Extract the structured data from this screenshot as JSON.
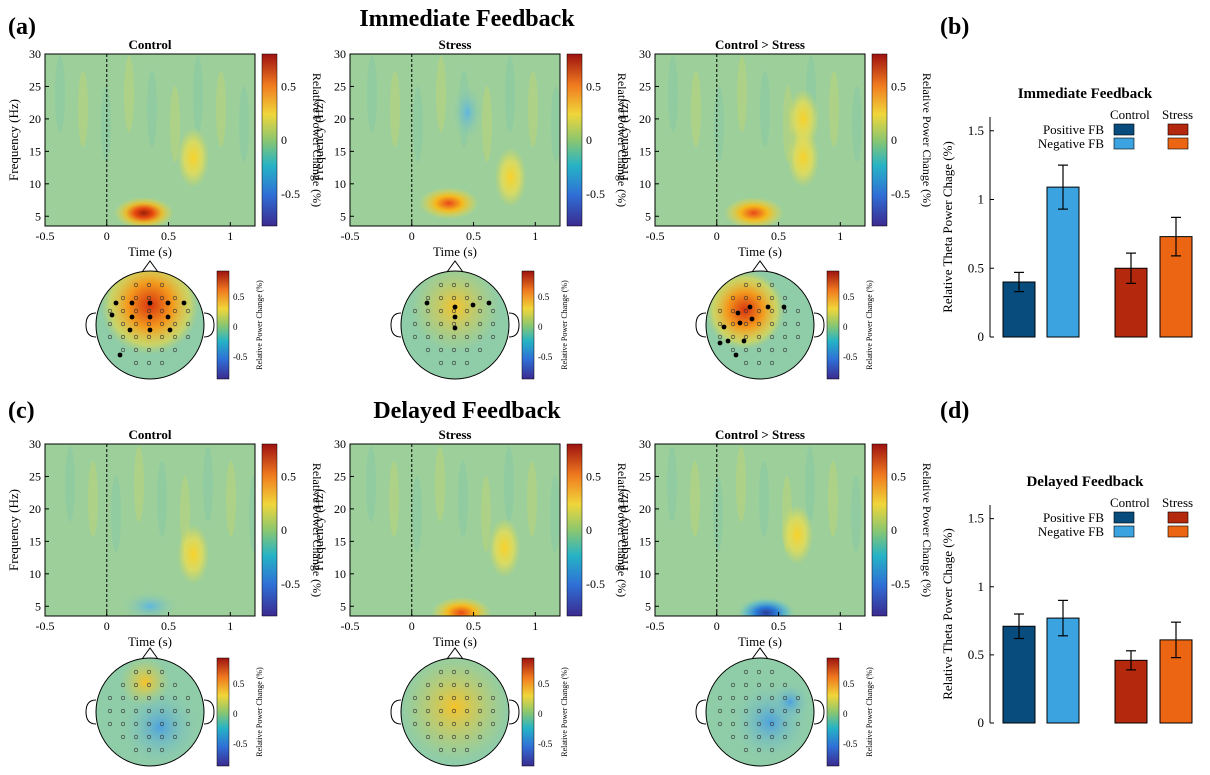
{
  "panels": {
    "a": {
      "letter": "(a)",
      "title": "Immediate Feedback"
    },
    "b": {
      "letter": "(b)"
    },
    "c": {
      "letter": "(c)",
      "title": "Delayed Feedback"
    },
    "d": {
      "letter": "(d)"
    }
  },
  "heatmap_common": {
    "xlabel": "Time (s)",
    "ylabel": "Frequency (Hz)",
    "xticks": [
      "-0.5",
      "0",
      "0.5",
      "1"
    ],
    "yticks": [
      "5",
      "10",
      "15",
      "20",
      "25",
      "30"
    ],
    "colorbar_label": "Relative Power Change (%)",
    "colorbar_ticks": [
      "0.5",
      "0",
      "-0.5"
    ]
  },
  "chart_data": [
    {
      "type": "heatmap",
      "panel": "a",
      "title": "Control",
      "x_range": [
        -0.5,
        1.2
      ],
      "y_range": [
        3.5,
        30
      ],
      "clim": [
        -0.8,
        0.8
      ],
      "features": [
        {
          "time": 0.3,
          "freq": 5.5,
          "value": 0.8
        },
        {
          "time": 0.7,
          "freq": 14,
          "value": 0.3
        }
      ]
    },
    {
      "type": "heatmap",
      "panel": "a",
      "title": "Stress",
      "x_range": [
        -0.5,
        1.2
      ],
      "y_range": [
        3.5,
        30
      ],
      "clim": [
        -0.8,
        0.8
      ],
      "features": [
        {
          "time": 0.3,
          "freq": 7,
          "value": 0.6
        },
        {
          "time": 0.8,
          "freq": 11,
          "value": 0.3
        },
        {
          "time": 0.45,
          "freq": 21,
          "value": -0.2
        }
      ]
    },
    {
      "type": "heatmap",
      "panel": "a",
      "title": "Control > Stress",
      "x_range": [
        -0.5,
        1.2
      ],
      "y_range": [
        3.5,
        30
      ],
      "clim": [
        -0.8,
        0.8
      ],
      "features": [
        {
          "time": 0.3,
          "freq": 5.5,
          "value": 0.6
        },
        {
          "time": 0.7,
          "freq": 20,
          "value": 0.25
        },
        {
          "time": 0.7,
          "freq": 14,
          "value": 0.2
        }
      ]
    },
    {
      "type": "heatmap",
      "panel": "c",
      "title": "Control",
      "x_range": [
        -0.5,
        1.2
      ],
      "y_range": [
        3.5,
        30
      ],
      "clim": [
        -0.8,
        0.8
      ],
      "features": [
        {
          "time": 0.7,
          "freq": 13,
          "value": 0.3
        },
        {
          "time": 0.35,
          "freq": 5,
          "value": -0.1
        }
      ]
    },
    {
      "type": "heatmap",
      "panel": "c",
      "title": "Stress",
      "x_range": [
        -0.5,
        1.2
      ],
      "y_range": [
        3.5,
        30
      ],
      "clim": [
        -0.8,
        0.8
      ],
      "features": [
        {
          "time": 0.4,
          "freq": 4,
          "value": 0.45
        },
        {
          "time": 0.75,
          "freq": 14,
          "value": 0.2
        }
      ]
    },
    {
      "type": "heatmap",
      "panel": "c",
      "title": "Control > Stress",
      "x_range": [
        -0.5,
        1.2
      ],
      "y_range": [
        3.5,
        30
      ],
      "clim": [
        -0.8,
        0.8
      ],
      "features": [
        {
          "time": 0.4,
          "freq": 4,
          "value": -0.7
        },
        {
          "time": 0.65,
          "freq": 16,
          "value": 0.35
        }
      ]
    },
    {
      "type": "bar",
      "panel": "b",
      "title": "Immediate Feedback",
      "ylabel": "Relative Theta Power Chage (%)",
      "ylim": [
        0,
        1.6
      ],
      "yticks": [
        "0",
        "0.5",
        "1",
        "1.5"
      ],
      "legend": {
        "column_headers": [
          "Control",
          "Stress"
        ],
        "rows": [
          "Positive FB",
          "Negative FB"
        ]
      },
      "series": [
        {
          "values": [
            0.4
          ],
          "error": [
            0.07
          ]
        },
        {
          "values": [
            1.09
          ],
          "error": [
            0.16
          ]
        },
        {
          "values": [
            0.5
          ],
          "error": [
            0.11
          ]
        },
        {
          "values": [
            0.73
          ],
          "error": [
            0.14
          ]
        }
      ]
    },
    {
      "type": "bar",
      "panel": "d",
      "title": "Delayed Feedback",
      "ylabel": "Relative Theta Power Chage (%)",
      "ylim": [
        0,
        1.6
      ],
      "yticks": [
        "0",
        "0.5",
        "1",
        "1.5"
      ],
      "legend": {
        "column_headers": [
          "Control",
          "Stress"
        ],
        "rows": [
          "Positive FB",
          "Negative FB"
        ]
      },
      "series": [
        {
          "values": [
            0.71
          ],
          "error": [
            0.09
          ]
        },
        {
          "values": [
            0.77
          ],
          "error": [
            0.13
          ]
        },
        {
          "values": [
            0.46
          ],
          "error": [
            0.07
          ]
        },
        {
          "values": [
            0.61
          ],
          "error": [
            0.13
          ]
        }
      ]
    }
  ],
  "colors": {
    "control_positive": "#074c7c",
    "control_negative": "#3aa3e0",
    "stress_positive": "#b4280d",
    "stress_negative": "#ec6513"
  }
}
